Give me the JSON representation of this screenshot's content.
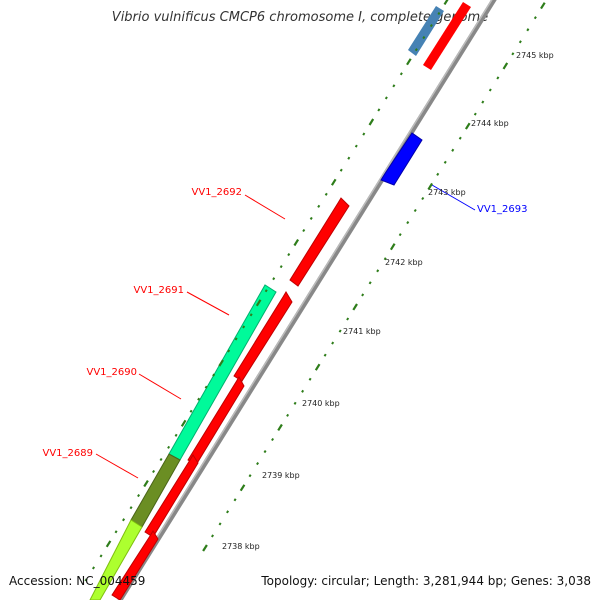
{
  "title": "Vibrio vulnificus CMCP6 chromosome I, complete genome",
  "footer": {
    "accession": "Accession: NC_004459",
    "stats": "Topology: circular; Length: 3,281,944 bp; Genes: 3,038"
  },
  "colors": {
    "forward_cds": "#ff0000",
    "reverse_cds": "#0000ff",
    "reverse_cds_upper": "#4682b4",
    "backbone": "#808080",
    "tick": "#2e7d1a",
    "label_forward": "#ff0000",
    "label_reverse": "#0000ff",
    "track_2689": "#6b8e23",
    "track_2690": "#00fa9a",
    "track_other": "#adff2f"
  },
  "tick_labels": [
    {
      "kbp": 2738,
      "text": "2738 kbp"
    },
    {
      "kbp": 2739,
      "text": "2739 kbp"
    },
    {
      "kbp": 2740,
      "text": "2740 kbp"
    },
    {
      "kbp": 2741,
      "text": "2741 kbp"
    },
    {
      "kbp": 2742,
      "text": "2742 kbp"
    },
    {
      "kbp": 2743,
      "text": "2743 kbp"
    },
    {
      "kbp": 2744,
      "text": "2744 kbp"
    },
    {
      "kbp": 2745,
      "text": "2745 kbp"
    }
  ],
  "gene_labels": [
    {
      "name": "VV1_2689",
      "strand": "forward"
    },
    {
      "name": "VV1_2690",
      "strand": "forward"
    },
    {
      "name": "VV1_2691",
      "strand": "forward"
    },
    {
      "name": "VV1_2692",
      "strand": "forward"
    },
    {
      "name": "VV1_2693",
      "strand": "reverse"
    }
  ]
}
